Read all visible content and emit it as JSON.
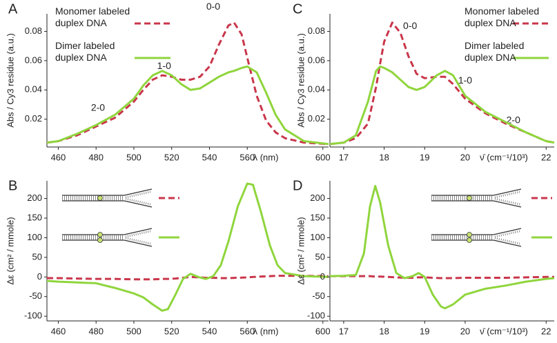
{
  "chart_data": [
    {
      "type": "line",
      "panel_label": "A",
      "ylabel": "Abs / Cy3 residue (a.u.)",
      "xlabel": "λ (nm)",
      "xlim": [
        454,
        603
      ],
      "xticks": [
        460,
        480,
        500,
        520,
        540,
        560,
        600
      ],
      "ylim": [
        0.001,
        0.092
      ],
      "yticks": [
        0.02,
        0.04,
        0.06,
        0.08
      ],
      "legend": "upper left",
      "x": [
        454,
        460,
        470,
        480,
        490,
        500,
        505,
        510,
        515,
        520,
        525,
        530,
        535,
        540,
        545,
        550,
        553,
        557,
        560,
        565,
        570,
        575,
        580,
        590,
        603
      ],
      "series": [
        {
          "name": "Monomer labeled duplex DNA",
          "color": "#c9364b",
          "dashed": true,
          "values": [
            0.004,
            0.005,
            0.009,
            0.015,
            0.021,
            0.032,
            0.04,
            0.047,
            0.05,
            0.049,
            0.047,
            0.047,
            0.049,
            0.056,
            0.071,
            0.084,
            0.086,
            0.078,
            0.062,
            0.036,
            0.019,
            0.011,
            0.007,
            0.004,
            0.003
          ]
        },
        {
          "name": "Dimer labeled duplex DNA",
          "color": "#8fd53c",
          "dashed": false,
          "values": [
            0.004,
            0.005,
            0.01,
            0.016,
            0.023,
            0.034,
            0.043,
            0.05,
            0.053,
            0.05,
            0.044,
            0.04,
            0.041,
            0.045,
            0.049,
            0.052,
            0.053,
            0.055,
            0.056,
            0.052,
            0.038,
            0.023,
            0.013,
            0.005,
            0.003
          ]
        }
      ],
      "annotations": [
        {
          "text": "0-0",
          "x": 542,
          "y": 0.0965
        },
        {
          "text": "1-0",
          "x": 516,
          "y": 0.056
        },
        {
          "text": "2-0",
          "x": 481,
          "y": 0.0274
        }
      ]
    },
    {
      "type": "line",
      "panel_label": "B",
      "ylabel": "Δε (cm² / mmole)",
      "xlabel": "λ (nm)",
      "xlim": [
        454,
        603
      ],
      "xticks": [
        460,
        480,
        500,
        520,
        540,
        560,
        600
      ],
      "ylim": [
        -112,
        245
      ],
      "yticks": [
        -100,
        -50,
        0,
        50,
        100,
        150,
        200
      ],
      "x": [
        454,
        460,
        470,
        480,
        490,
        500,
        505,
        510,
        515,
        518,
        522,
        526,
        530,
        534,
        538,
        542,
        546,
        550,
        555,
        560,
        563,
        567,
        572,
        576,
        580,
        590,
        603
      ],
      "series": [
        {
          "color": "#c9364b",
          "dashed": true,
          "values": [
            -3,
            -3,
            -4,
            -5,
            -5,
            -6,
            -6,
            -6,
            -5,
            -5,
            -4,
            -2,
            0,
            -1,
            -2,
            -2,
            -3,
            -3,
            -2,
            -1,
            0,
            1,
            2,
            3,
            3,
            3,
            2
          ]
        },
        {
          "color": "#8fd53c",
          "dashed": false,
          "values": [
            -10,
            -12,
            -14,
            -16,
            -28,
            -42,
            -52,
            -70,
            -86,
            -82,
            -45,
            -5,
            8,
            0,
            -5,
            2,
            30,
            90,
            180,
            238,
            235,
            170,
            80,
            30,
            10,
            2,
            0
          ]
        }
      ]
    },
    {
      "type": "line",
      "panel_label": "C",
      "ylabel": "Abs / Cy3 residue (a.u.)",
      "xlabel": "ν̄  (cm⁻¹/10³)",
      "xlim": [
        16.66,
        22.2
      ],
      "xticks": [
        17,
        18,
        19,
        20,
        22
      ],
      "ylim": [
        0.001,
        0.092
      ],
      "yticks": [
        0.02,
        0.04,
        0.06,
        0.08
      ],
      "legend": "upper right",
      "x": [
        16.66,
        17,
        17.3,
        17.6,
        17.8,
        17.9,
        18.0,
        18.2,
        18.4,
        18.6,
        18.8,
        19.0,
        19.3,
        19.5,
        19.7,
        20.0,
        20.5,
        21.0,
        21.5,
        22.0,
        22.2
      ],
      "series": [
        {
          "name": "Monomer labeled duplex DNA",
          "color": "#c9364b",
          "dashed": true,
          "values": [
            0.003,
            0.004,
            0.007,
            0.017,
            0.042,
            0.058,
            0.073,
            0.086,
            0.079,
            0.063,
            0.051,
            0.048,
            0.049,
            0.049,
            0.044,
            0.034,
            0.024,
            0.017,
            0.011,
            0.005,
            0.004
          ]
        },
        {
          "name": "Dimer labeled duplex DNA",
          "color": "#8fd53c",
          "dashed": false,
          "values": [
            0.003,
            0.004,
            0.009,
            0.032,
            0.053,
            0.056,
            0.055,
            0.052,
            0.047,
            0.042,
            0.04,
            0.042,
            0.05,
            0.053,
            0.05,
            0.036,
            0.025,
            0.018,
            0.011,
            0.005,
            0.004
          ]
        }
      ],
      "annotations": [
        {
          "text": "0-0",
          "x": 18.64,
          "y": 0.0834
        },
        {
          "text": "1-0",
          "x": 20.0,
          "y": 0.0462
        },
        {
          "text": "2-0",
          "x": 21.19,
          "y": 0.0189
        }
      ]
    },
    {
      "type": "line",
      "panel_label": "D",
      "ylabel": "Δε (cm² / mmole)",
      "xlabel": "ν̄  (cm⁻¹/10³)",
      "xlim": [
        16.66,
        22.2
      ],
      "xticks": [
        17,
        18,
        19,
        20,
        22
      ],
      "ylim": [
        -112,
        245
      ],
      "yticks": [
        -100,
        -50,
        0,
        50,
        100,
        150,
        200
      ],
      "x": [
        16.66,
        17,
        17.3,
        17.5,
        17.65,
        17.78,
        17.9,
        18.1,
        18.3,
        18.5,
        18.7,
        18.85,
        19.0,
        19.2,
        19.4,
        19.5,
        19.7,
        20.0,
        20.5,
        21.0,
        21.5,
        22.0,
        22.2
      ],
      "series": [
        {
          "color": "#c9364b",
          "dashed": true,
          "values": [
            2,
            2,
            2,
            2,
            2,
            1,
            1,
            0,
            -1,
            -2,
            -2,
            -1,
            -1,
            -2,
            -3,
            -3,
            -3,
            -2,
            -2,
            -2,
            -1,
            0,
            0
          ]
        },
        {
          "color": "#8fd53c",
          "dashed": false,
          "values": [
            2,
            3,
            5,
            60,
            180,
            232,
            190,
            80,
            10,
            -3,
            2,
            10,
            0,
            -45,
            -75,
            -80,
            -70,
            -45,
            -30,
            -22,
            -12,
            -5,
            -3
          ]
        }
      ]
    }
  ]
}
